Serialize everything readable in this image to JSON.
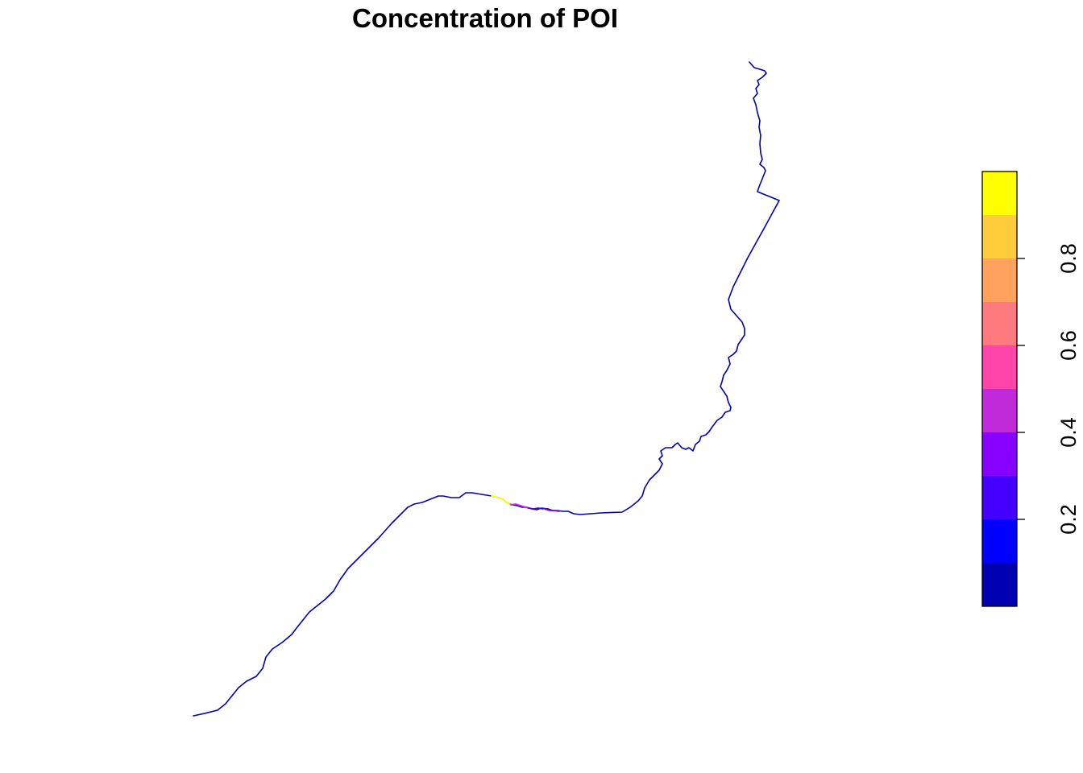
{
  "title": "Concentration of POI",
  "legend": {
    "placement": "right",
    "breaks": [
      0.0,
      0.1,
      0.2,
      0.3,
      0.4,
      0.5,
      0.6,
      0.7,
      0.8,
      0.9,
      1.0
    ],
    "colors": [
      "#0000B3",
      "#0000FF",
      "#4400FF",
      "#8800FF",
      "#C12AD8",
      "#FF45AA",
      "#FF7A7F",
      "#FFA25D",
      "#FFCC3A",
      "#FFFF00"
    ],
    "tick_values": [
      0.2,
      0.4,
      0.6,
      0.8
    ],
    "tick_labels": [
      "0.2",
      "0.4",
      "0.6",
      "0.8"
    ]
  },
  "river": {
    "base_color": "#0000B3",
    "highlighted_segments": [
      {
        "concentration": 0.95,
        "color": "#FFFF00"
      },
      {
        "concentration": 0.45,
        "color": "#C12AD8"
      },
      {
        "concentration": 0.35,
        "color": "#8800FF"
      },
      {
        "concentration": 0.25,
        "color": "#4400FF"
      }
    ]
  }
}
